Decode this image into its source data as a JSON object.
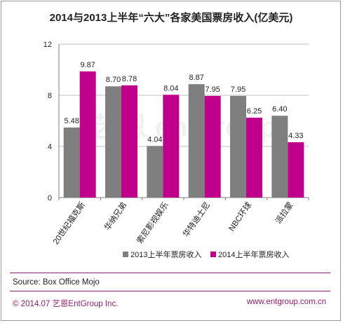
{
  "chart_data": {
    "type": "bar",
    "title": "2014与2013上半年“六大”各家美国票房收入(亿美元)",
    "categories": [
      "20世纪福克斯",
      "华纳兄弟",
      "索尼影视娱乐",
      "华特迪士尼",
      "NBC环球",
      "派拉蒙"
    ],
    "series": [
      {
        "name": "2013上半年票房收入",
        "color": "#7f7f7f",
        "values": [
          5.48,
          8.7,
          4.04,
          8.87,
          7.95,
          6.4
        ]
      },
      {
        "name": "2014上半年票房收入",
        "color": "#c0008b",
        "values": [
          9.87,
          8.78,
          8.04,
          7.95,
          6.25,
          4.33
        ]
      }
    ],
    "data_labels": [
      [
        "5.48",
        "8.70",
        "4.04",
        "8.87",
        "7.95",
        "6.40"
      ],
      [
        "9.87",
        "8.78",
        "8.04",
        "7.95",
        "6.25",
        "4.33"
      ]
    ],
    "ylim": [
      0,
      12
    ],
    "yticks": [
      0,
      4,
      8,
      12
    ],
    "grid": true,
    "legend_position": "bottom"
  },
  "watermark": "艺恩 entgroup",
  "footer": {
    "source": "Source: Box Office Mojo",
    "copyright": "© 2014.07  艺恩EntGroup Inc.",
    "website": "www.entgroup.com.cn"
  }
}
